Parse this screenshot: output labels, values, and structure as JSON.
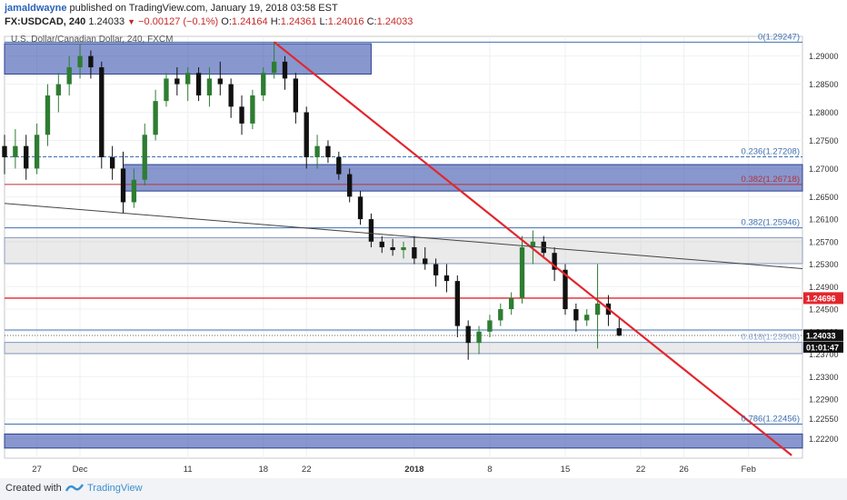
{
  "header": {
    "user": "jamaldwayne",
    "published_text": "published on TradingView.com, January 19, 2018 03:58 EST",
    "symbol": "FX:USDCAD, 240",
    "last": "1.24033",
    "change": "−0.00127 (−0.1%)",
    "open_label": "O:",
    "open": "1.24164",
    "high_label": "H:",
    "high": "1.24361",
    "low_label": "L:",
    "low": "1.24016",
    "close_label": "C:",
    "close": "1.24033"
  },
  "footer": {
    "created_with": "Created with",
    "brand": "TradingView"
  },
  "colors": {
    "zone_blue": "#3f57b0",
    "zone_gray": "#c8c8c8",
    "trend_red": "#e3262d",
    "fib_blue": "#3f6fb0",
    "fib_red": "#b8323a",
    "candle_up": "#2e7d32",
    "candle_down": "#111111",
    "price_marker": "#e3262d",
    "current_marker": "#111111"
  },
  "chart_data": {
    "type": "candlestick",
    "title": "U.S. Dollar/Canadian Dollar, 240, FXCM",
    "ylim": [
      1.2185,
      1.2935
    ],
    "xlim": [
      "2017-11-24",
      "2018-02-06"
    ],
    "grid": true,
    "y_ticks": [
      "1.29000",
      "1.28500",
      "1.28000",
      "1.27500",
      "1.27000",
      "1.26500",
      "1.26100",
      "1.25700",
      "1.25300",
      "1.24900",
      "1.24500",
      "1.24100",
      "1.23700",
      "1.23300",
      "1.22900",
      "1.22550",
      "1.22200"
    ],
    "x_ticks": [
      {
        "label": "27",
        "date": "2017-11-27"
      },
      {
        "label": "Dec",
        "date": "2017-12-01"
      },
      {
        "label": "11",
        "date": "2017-12-11"
      },
      {
        "label": "18",
        "date": "2017-12-18"
      },
      {
        "label": "22",
        "date": "2017-12-22"
      },
      {
        "label": "2018",
        "date": "2018-01-01"
      },
      {
        "label": "8",
        "date": "2018-01-08"
      },
      {
        "label": "15",
        "date": "2018-01-15"
      },
      {
        "label": "22",
        "date": "2018-01-22"
      },
      {
        "label": "26",
        "date": "2018-01-26"
      },
      {
        "label": "Feb",
        "date": "2018-02-01"
      }
    ],
    "price_label": "1.24696",
    "current_price": "1.24033",
    "countdown": "01:01:47",
    "fib_levels": [
      {
        "label": "0(1.29247)",
        "value": 1.29247,
        "color": "blue",
        "style": "solid"
      },
      {
        "label": "0.236(1.27208)",
        "value": 1.27208,
        "color": "blue",
        "style": "dashed"
      },
      {
        "label": "0.382(1.26718)",
        "value": 1.26718,
        "color": "red",
        "style": "solid"
      },
      {
        "label": "0.382(1.25946)",
        "value": 1.25946,
        "color": "blue",
        "style": "solid"
      },
      {
        "label": "0.618(1.23908)",
        "value": 1.23908,
        "color": "lightblue",
        "style": "solid"
      },
      {
        "label": "0.786(1.22456)",
        "value": 1.22456,
        "color": "blue",
        "style": "solid"
      }
    ],
    "zones": [
      {
        "color": "blue",
        "x_start": "2017-11-24",
        "x_end": "2017-12-28",
        "y_low": 1.2868,
        "y_high": 1.2922
      },
      {
        "color": "blue",
        "x_start": "2017-12-05",
        "x_end": "2018-02-06",
        "y_low": 1.266,
        "y_high": 1.2707
      },
      {
        "color": "gray",
        "x_start": "2017-11-24",
        "x_end": "2018-02-06",
        "y_low": 1.2531,
        "y_high": 1.2577
      },
      {
        "color": "gray",
        "x_start": "2017-11-24",
        "x_end": "2018-02-06",
        "y_low": 1.2371,
        "y_high": 1.2391
      },
      {
        "color": "blue",
        "x_start": "2017-11-24",
        "x_end": "2018-02-06",
        "y_low": 1.2203,
        "y_high": 1.2228
      }
    ],
    "horizontal_lines": [
      {
        "value": 1.24696,
        "color": "red"
      },
      {
        "value": 1.2413,
        "color": "blue"
      }
    ],
    "trendlines": [
      {
        "color": "red",
        "start": {
          "date": "2017-12-19",
          "value": 1.2925
        },
        "end": {
          "date": "2018-02-05",
          "value": 1.219
        }
      },
      {
        "color": "dark-gray",
        "start": {
          "date": "2017-11-24",
          "value": 1.2638
        },
        "end": {
          "date": "2018-02-06",
          "value": 1.2522
        }
      }
    ],
    "candles": [
      {
        "date": "2017-11-24",
        "open": 1.274,
        "high": 1.276,
        "low": 1.269,
        "close": 1.272
      },
      {
        "date": "2017-11-25",
        "open": 1.272,
        "high": 1.277,
        "low": 1.27,
        "close": 1.274
      },
      {
        "date": "2017-11-26",
        "open": 1.274,
        "high": 1.276,
        "low": 1.268,
        "close": 1.27
      },
      {
        "date": "2017-11-27",
        "open": 1.27,
        "high": 1.278,
        "low": 1.269,
        "close": 1.276
      },
      {
        "date": "2017-11-28",
        "open": 1.276,
        "high": 1.285,
        "low": 1.274,
        "close": 1.283
      },
      {
        "date": "2017-11-29",
        "open": 1.283,
        "high": 1.287,
        "low": 1.28,
        "close": 1.285
      },
      {
        "date": "2017-11-30",
        "open": 1.285,
        "high": 1.29,
        "low": 1.283,
        "close": 1.288
      },
      {
        "date": "2017-12-01",
        "open": 1.288,
        "high": 1.292,
        "low": 1.286,
        "close": 1.29
      },
      {
        "date": "2017-12-02",
        "open": 1.29,
        "high": 1.291,
        "low": 1.286,
        "close": 1.288
      },
      {
        "date": "2017-12-03",
        "open": 1.288,
        "high": 1.289,
        "low": 1.27,
        "close": 1.272
      },
      {
        "date": "2017-12-04",
        "open": 1.272,
        "high": 1.274,
        "low": 1.268,
        "close": 1.27
      },
      {
        "date": "2017-12-05",
        "open": 1.27,
        "high": 1.273,
        "low": 1.262,
        "close": 1.264
      },
      {
        "date": "2017-12-06",
        "open": 1.264,
        "high": 1.27,
        "low": 1.263,
        "close": 1.268
      },
      {
        "date": "2017-12-07",
        "open": 1.268,
        "high": 1.278,
        "low": 1.267,
        "close": 1.276
      },
      {
        "date": "2017-12-08",
        "open": 1.276,
        "high": 1.284,
        "low": 1.275,
        "close": 1.282
      },
      {
        "date": "2017-12-09",
        "open": 1.282,
        "high": 1.287,
        "low": 1.281,
        "close": 1.286
      },
      {
        "date": "2017-12-10",
        "open": 1.286,
        "high": 1.288,
        "low": 1.283,
        "close": 1.285
      },
      {
        "date": "2017-12-11",
        "open": 1.285,
        "high": 1.288,
        "low": 1.282,
        "close": 1.287
      },
      {
        "date": "2017-12-12",
        "open": 1.287,
        "high": 1.288,
        "low": 1.282,
        "close": 1.283
      },
      {
        "date": "2017-12-13",
        "open": 1.283,
        "high": 1.288,
        "low": 1.281,
        "close": 1.286
      },
      {
        "date": "2017-12-14",
        "open": 1.286,
        "high": 1.289,
        "low": 1.283,
        "close": 1.285
      },
      {
        "date": "2017-12-15",
        "open": 1.285,
        "high": 1.286,
        "low": 1.279,
        "close": 1.281
      },
      {
        "date": "2017-12-16",
        "open": 1.281,
        "high": 1.283,
        "low": 1.276,
        "close": 1.278
      },
      {
        "date": "2017-12-17",
        "open": 1.278,
        "high": 1.284,
        "low": 1.277,
        "close": 1.283
      },
      {
        "date": "2017-12-18",
        "open": 1.283,
        "high": 1.288,
        "low": 1.282,
        "close": 1.287
      },
      {
        "date": "2017-12-19",
        "open": 1.287,
        "high": 1.2925,
        "low": 1.286,
        "close": 1.289
      },
      {
        "date": "2017-12-20",
        "open": 1.289,
        "high": 1.29,
        "low": 1.284,
        "close": 1.286
      },
      {
        "date": "2017-12-21",
        "open": 1.286,
        "high": 1.287,
        "low": 1.278,
        "close": 1.28
      },
      {
        "date": "2017-12-22",
        "open": 1.28,
        "high": 1.281,
        "low": 1.27,
        "close": 1.272
      },
      {
        "date": "2017-12-23",
        "open": 1.272,
        "high": 1.276,
        "low": 1.27,
        "close": 1.274
      },
      {
        "date": "2017-12-24",
        "open": 1.274,
        "high": 1.275,
        "low": 1.271,
        "close": 1.272
      },
      {
        "date": "2017-12-25",
        "open": 1.272,
        "high": 1.273,
        "low": 1.268,
        "close": 1.269
      },
      {
        "date": "2017-12-26",
        "open": 1.269,
        "high": 1.27,
        "low": 1.264,
        "close": 1.265
      },
      {
        "date": "2017-12-27",
        "open": 1.265,
        "high": 1.266,
        "low": 1.26,
        "close": 1.261
      },
      {
        "date": "2017-12-28",
        "open": 1.261,
        "high": 1.262,
        "low": 1.256,
        "close": 1.257
      },
      {
        "date": "2017-12-29",
        "open": 1.257,
        "high": 1.258,
        "low": 1.255,
        "close": 1.256
      },
      {
        "date": "2017-12-30",
        "open": 1.256,
        "high": 1.2575,
        "low": 1.2545,
        "close": 1.2555
      },
      {
        "date": "2017-12-31",
        "open": 1.2555,
        "high": 1.257,
        "low": 1.254,
        "close": 1.256
      },
      {
        "date": "2018-01-01",
        "open": 1.256,
        "high": 1.258,
        "low": 1.253,
        "close": 1.254
      },
      {
        "date": "2018-01-02",
        "open": 1.254,
        "high": 1.256,
        "low": 1.252,
        "close": 1.253
      },
      {
        "date": "2018-01-03",
        "open": 1.253,
        "high": 1.254,
        "low": 1.249,
        "close": 1.251
      },
      {
        "date": "2018-01-04",
        "open": 1.251,
        "high": 1.253,
        "low": 1.248,
        "close": 1.25
      },
      {
        "date": "2018-01-05",
        "open": 1.25,
        "high": 1.251,
        "low": 1.24,
        "close": 1.242
      },
      {
        "date": "2018-01-06",
        "open": 1.242,
        "high": 1.243,
        "low": 1.236,
        "close": 1.239
      },
      {
        "date": "2018-01-07",
        "open": 1.239,
        "high": 1.242,
        "low": 1.237,
        "close": 1.241
      },
      {
        "date": "2018-01-08",
        "open": 1.241,
        "high": 1.244,
        "low": 1.24,
        "close": 1.243
      },
      {
        "date": "2018-01-09",
        "open": 1.243,
        "high": 1.246,
        "low": 1.242,
        "close": 1.245
      },
      {
        "date": "2018-01-10",
        "open": 1.245,
        "high": 1.248,
        "low": 1.244,
        "close": 1.247
      },
      {
        "date": "2018-01-11",
        "open": 1.247,
        "high": 1.258,
        "low": 1.246,
        "close": 1.256
      },
      {
        "date": "2018-01-12",
        "open": 1.256,
        "high": 1.259,
        "low": 1.253,
        "close": 1.257
      },
      {
        "date": "2018-01-13",
        "open": 1.257,
        "high": 1.258,
        "low": 1.254,
        "close": 1.255
      },
      {
        "date": "2018-01-14",
        "open": 1.255,
        "high": 1.256,
        "low": 1.25,
        "close": 1.252
      },
      {
        "date": "2018-01-15",
        "open": 1.252,
        "high": 1.253,
        "low": 1.244,
        "close": 1.245
      },
      {
        "date": "2018-01-16",
        "open": 1.245,
        "high": 1.246,
        "low": 1.241,
        "close": 1.243
      },
      {
        "date": "2018-01-17",
        "open": 1.243,
        "high": 1.245,
        "low": 1.242,
        "close": 1.244
      },
      {
        "date": "2018-01-18",
        "open": 1.244,
        "high": 1.253,
        "low": 1.238,
        "close": 1.246
      },
      {
        "date": "2018-01-19",
        "open": 1.246,
        "high": 1.2475,
        "low": 1.242,
        "close": 1.244
      },
      {
        "date": "2018-01-20",
        "open": 1.2416,
        "high": 1.2436,
        "low": 1.2402,
        "close": 1.2403
      }
    ]
  }
}
